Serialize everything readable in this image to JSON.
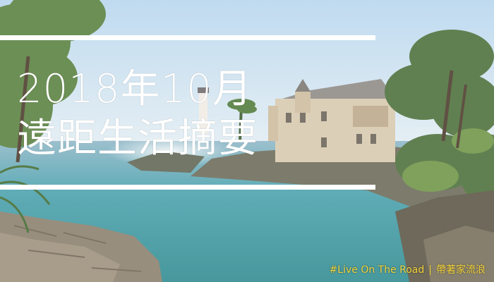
{
  "banner": {
    "title_line1": "2018年10月",
    "title_line2": "遠距生活摘要",
    "tagline_hashtag": "#Live On The Road",
    "tagline_separator": "|",
    "tagline_brand": "帶著家流浪"
  },
  "colors": {
    "title_text": "#ffffff",
    "rule": "#ffffff",
    "tagline_text": "#f2d23a",
    "sky": "#c7dff0",
    "sea": "#3c9aa6"
  }
}
